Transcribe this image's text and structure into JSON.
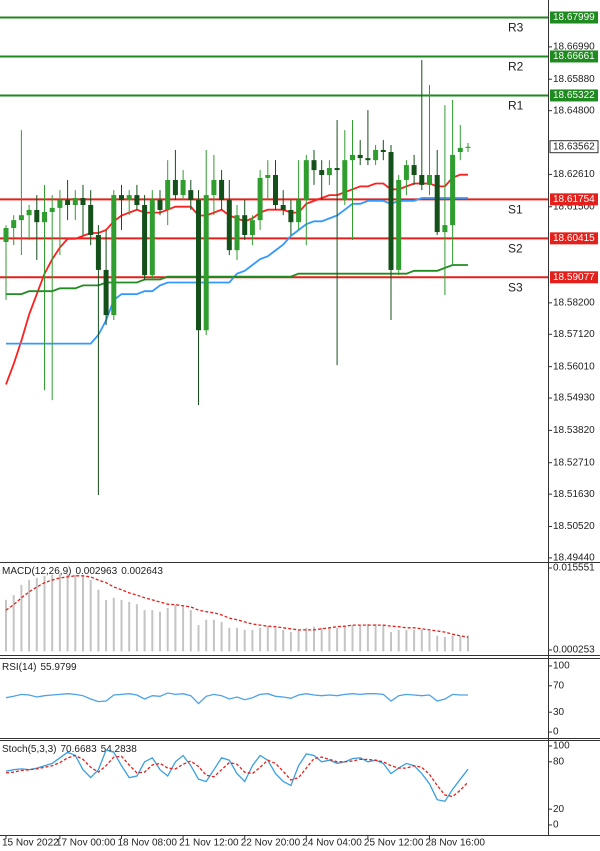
{
  "chart_data": [
    {
      "type": "candlestick",
      "categories": [
        "15 Nov 2022",
        null,
        null,
        null,
        null,
        null,
        null,
        "17 Nov 00:00",
        null,
        null,
        null,
        null,
        null,
        null,
        null,
        "18 Nov 08:00",
        null,
        null,
        null,
        null,
        null,
        null,
        null,
        "21 Nov 12:00",
        null,
        null,
        null,
        null,
        null,
        null,
        null,
        "22 Nov 20:00",
        null,
        null,
        null,
        null,
        null,
        null,
        null,
        "24 Nov 04:00",
        null,
        null,
        null,
        null,
        null,
        null,
        null,
        "25 Nov 12:00",
        null,
        null,
        null,
        null,
        null,
        null,
        null,
        "28 Nov 16:00",
        null,
        null,
        null,
        null,
        null
      ],
      "open": [
        18.6029,
        18.6077,
        18.6104,
        18.6121,
        18.6139,
        18.6097,
        18.6132,
        18.6146,
        18.6173,
        18.6156,
        18.618,
        18.6156,
        18.6053,
        18.5933,
        18.5778,
        18.619,
        18.6173,
        18.619,
        18.6156,
        18.5915,
        18.6173,
        18.6139,
        18.6242,
        18.619,
        18.6207,
        18.6173,
        18.5726,
        18.619,
        18.6242,
        18.6173,
        18.6001,
        18.6121,
        18.6053,
        18.6104,
        18.6249,
        18.6259,
        18.6156,
        18.6139,
        18.6097,
        18.6173,
        18.631,
        18.6276,
        18.6259,
        18.6283,
        18.6173,
        18.631,
        18.6328,
        18.6317,
        18.631,
        18.6345,
        18.6338,
        18.5933,
        18.6242,
        18.6293,
        18.6259,
        18.6225,
        18.6259,
        18.6063,
        18.6087,
        18.6338,
        18.6352
      ],
      "high": [
        18.6087,
        18.6121,
        18.6413,
        18.6156,
        18.619,
        18.6225,
        18.619,
        18.6207,
        18.6242,
        18.6207,
        18.6225,
        18.6207,
        18.6087,
        18.607,
        18.6207,
        18.6225,
        18.6207,
        18.6225,
        18.619,
        18.6207,
        18.6207,
        18.631,
        18.6345,
        18.6276,
        18.6242,
        18.6207,
        18.6345,
        18.6328,
        18.6276,
        18.6242,
        18.6156,
        18.6173,
        18.6121,
        18.6276,
        18.631,
        18.631,
        18.6207,
        18.6173,
        18.631,
        18.6328,
        18.6345,
        18.631,
        18.631,
        18.6448,
        18.6413,
        18.6448,
        18.6379,
        18.6482,
        18.6362,
        18.6379,
        18.6362,
        18.6259,
        18.631,
        18.6328,
        18.6654,
        18.6568,
        18.6345,
        18.6499,
        18.6517,
        18.6431,
        18.6369
      ],
      "low": [
        18.583,
        18.6018,
        18.5984,
        18.6036,
        18.5967,
        18.552,
        18.5486,
        18.5984,
        18.6104,
        18.6104,
        18.6053,
        18.6018,
        18.516,
        18.5744,
        18.5761,
        18.607,
        18.6121,
        18.6139,
        18.5898,
        18.5898,
        18.6121,
        18.6087,
        18.6173,
        18.6173,
        18.6139,
        18.5469,
        18.5709,
        18.6121,
        18.6139,
        18.5984,
        18.5967,
        18.6036,
        18.6018,
        18.607,
        18.6173,
        18.6139,
        18.6121,
        18.6053,
        18.607,
        18.6018,
        18.6225,
        18.6173,
        18.6225,
        18.5606,
        18.6156,
        18.6036,
        18.6293,
        18.6293,
        18.6293,
        18.631,
        18.5761,
        18.5915,
        18.619,
        18.6225,
        18.6207,
        18.619,
        18.6053,
        18.5847,
        18.595,
        18.631,
        18.6338
      ],
      "close": [
        18.6077,
        18.6104,
        18.6121,
        18.6139,
        18.6097,
        18.6132,
        18.6146,
        18.6173,
        18.6156,
        18.618,
        18.6156,
        18.6053,
        18.5933,
        18.5778,
        18.619,
        18.6173,
        18.619,
        18.6156,
        18.5915,
        18.6173,
        18.6139,
        18.6242,
        18.619,
        18.6242,
        18.6173,
        18.5726,
        18.619,
        18.6242,
        18.6173,
        18.6001,
        18.6121,
        18.6053,
        18.6104,
        18.6249,
        18.6259,
        18.6156,
        18.6139,
        18.6097,
        18.6173,
        18.631,
        18.6276,
        18.6259,
        18.6283,
        18.6276,
        18.631,
        18.6328,
        18.6317,
        18.631,
        18.6345,
        18.6338,
        18.5933,
        18.6242,
        18.6293,
        18.6259,
        18.6225,
        18.6259,
        18.6063,
        18.6087,
        18.6328,
        18.6352,
        18.6356
      ],
      "up_color": "#2f9e2f",
      "down_color": "#14501a",
      "series": [
        {
          "color": "#ff1f1f",
          "values": [
            18.554,
            18.561,
            18.569,
            18.578,
            18.585,
            18.592,
            18.597,
            18.601,
            18.604,
            18.604,
            18.605,
            18.606,
            18.606,
            18.607,
            18.61,
            18.612,
            18.613,
            18.614,
            18.613,
            18.613,
            18.613,
            18.614,
            18.615,
            18.615,
            18.615,
            18.612,
            18.612,
            18.613,
            18.614,
            18.612,
            18.611,
            18.61,
            18.611,
            18.613,
            18.614,
            18.614,
            18.614,
            18.613,
            18.613,
            18.616,
            18.617,
            18.618,
            18.619,
            18.619,
            18.62,
            18.621,
            18.622,
            18.622,
            18.623,
            18.623,
            18.621,
            18.621,
            18.622,
            18.623,
            18.623,
            18.623,
            18.622,
            18.622,
            18.625,
            18.626,
            18.626
          ]
        },
        {
          "color": "#3399ff",
          "values": [
            18.568,
            18.568,
            18.568,
            18.568,
            18.568,
            18.568,
            18.568,
            18.568,
            18.568,
            18.568,
            18.568,
            18.568,
            18.571,
            18.576,
            18.583,
            18.585,
            18.585,
            18.585,
            18.586,
            18.586,
            18.588,
            18.589,
            18.589,
            18.589,
            18.589,
            18.589,
            18.589,
            18.589,
            18.589,
            18.589,
            18.592,
            18.593,
            18.595,
            18.597,
            18.598,
            18.6,
            18.602,
            18.605,
            18.607,
            18.609,
            18.61,
            18.61,
            18.611,
            18.612,
            18.614,
            18.616,
            18.616,
            18.617,
            18.617,
            18.617,
            18.616,
            18.617,
            18.617,
            18.617,
            18.618,
            18.618,
            18.618,
            18.618,
            18.618,
            18.618,
            18.618
          ]
        },
        {
          "color": "#228b22",
          "values": [
            18.585,
            18.585,
            18.585,
            18.586,
            18.586,
            18.586,
            18.586,
            18.587,
            18.587,
            18.587,
            18.588,
            18.588,
            18.588,
            18.589,
            18.589,
            18.589,
            18.589,
            18.589,
            18.59,
            18.59,
            18.59,
            18.591,
            18.591,
            18.591,
            18.591,
            18.591,
            18.591,
            18.591,
            18.591,
            18.591,
            18.591,
            18.591,
            18.591,
            18.591,
            18.591,
            18.591,
            18.591,
            18.591,
            18.592,
            18.592,
            18.592,
            18.592,
            18.592,
            18.592,
            18.592,
            18.592,
            18.592,
            18.592,
            18.592,
            18.592,
            18.592,
            18.592,
            18.592,
            18.593,
            18.593,
            18.593,
            18.593,
            18.594,
            18.595,
            18.595,
            18.595
          ]
        }
      ],
      "levels": [
        {
          "name": "R3",
          "value": 18.67999,
          "color": "#1f8a1f"
        },
        {
          "name": "R2",
          "value": 18.66661,
          "color": "#1f8a1f"
        },
        {
          "name": "R1",
          "value": 18.65322,
          "color": "#1f8a1f"
        },
        {
          "name": "S1",
          "value": 18.61754,
          "color": "#e3201b"
        },
        {
          "name": "S2",
          "value": 18.60415,
          "color": "#e3201b"
        },
        {
          "name": "S3",
          "value": 18.59077,
          "color": "#e3201b"
        }
      ],
      "last_price": 18.63562,
      "ylim": [
        18.493,
        18.686
      ],
      "yticks": [
        {
          "value": 18.6699,
          "label": "18.66990"
        },
        {
          "value": 18.6588,
          "label": "18.65880"
        },
        {
          "value": 18.648,
          "label": "18.64800"
        },
        {
          "value": 18.6261,
          "label": "18.62610"
        },
        {
          "value": 18.615,
          "label": "18.61500"
        },
        {
          "value": 18.582,
          "label": "18.58200"
        },
        {
          "value": 18.5712,
          "label": "18.57120"
        },
        {
          "value": 18.5601,
          "label": "18.56010"
        },
        {
          "value": 18.5493,
          "label": "18.54930"
        },
        {
          "value": 18.5382,
          "label": "18.53820"
        },
        {
          "value": 18.5271,
          "label": "18.52710"
        },
        {
          "value": 18.5163,
          "label": "18.51630"
        },
        {
          "value": 18.5052,
          "label": "18.50520"
        },
        {
          "value": 18.4944,
          "label": "18.49440"
        }
      ]
    },
    {
      "type": "macd",
      "title": "MACD(12,26,9)",
      "series": [
        {
          "type": "bar",
          "color": "#c4c4c4",
          "values": [
            0.0096,
            0.0105,
            0.0124,
            0.0133,
            0.0137,
            0.0141,
            0.0143,
            0.0144,
            0.0144,
            0.0143,
            0.0141,
            0.0133,
            0.0115,
            0.0096,
            0.01,
            0.0096,
            0.0092,
            0.0088,
            0.0077,
            0.0077,
            0.0074,
            0.0081,
            0.0087,
            0.0083,
            0.0077,
            0.0049,
            0.0059,
            0.0059,
            0.0055,
            0.0044,
            0.0044,
            0.004,
            0.004,
            0.0044,
            0.0047,
            0.0044,
            0.004,
            0.0036,
            0.004,
            0.0044,
            0.0046,
            0.0044,
            0.0044,
            0.0044,
            0.0046,
            0.0049,
            0.0049,
            0.0051,
            0.0051,
            0.0049,
            0.0036,
            0.004,
            0.004,
            0.004,
            0.004,
            0.0038,
            0.0029,
            0.0027,
            0.0029,
            0.0029,
            0.002963
          ]
        },
        {
          "type": "line",
          "dashed": true,
          "color": "#e3201b",
          "values": [
            0.0077,
            0.0087,
            0.01,
            0.0111,
            0.012,
            0.0128,
            0.0133,
            0.0137,
            0.0139,
            0.0141,
            0.0141,
            0.0139,
            0.0133,
            0.0128,
            0.012,
            0.0115,
            0.0109,
            0.0105,
            0.01,
            0.0096,
            0.0092,
            0.0088,
            0.0087,
            0.0085,
            0.0083,
            0.0077,
            0.0074,
            0.0072,
            0.0068,
            0.0062,
            0.0059,
            0.0055,
            0.0051,
            0.0049,
            0.0047,
            0.0046,
            0.0044,
            0.0042,
            0.004,
            0.004,
            0.004,
            0.0042,
            0.0044,
            0.0046,
            0.0047,
            0.0049,
            0.0049,
            0.0049,
            0.0049,
            0.0049,
            0.0047,
            0.0046,
            0.0044,
            0.0044,
            0.0042,
            0.004,
            0.0038,
            0.0036,
            0.0032,
            0.0029,
            0.002643
          ]
        }
      ],
      "ylim": [
        -0.00068,
        0.016671
      ],
      "yticks": [
        0.015551,
        0.000253
      ]
    },
    {
      "type": "line",
      "title": "RSI(14)",
      "series": [
        {
          "type": "line",
          "color": "#4da3e8",
          "values": [
            52,
            54,
            57,
            56,
            53,
            55,
            56,
            57,
            58,
            57,
            55,
            50,
            46,
            47,
            56,
            57,
            58,
            56,
            50,
            55,
            54,
            59,
            57,
            58,
            55,
            43,
            54,
            57,
            55,
            50,
            53,
            49,
            52,
            57,
            58,
            54,
            53,
            51,
            56,
            58,
            56,
            55,
            56,
            55,
            57,
            58,
            57,
            58,
            58,
            57,
            47,
            55,
            57,
            56,
            55,
            56,
            47,
            50,
            57,
            56,
            55.9799
          ]
        }
      ],
      "ylim": [
        -9,
        112
      ],
      "yticks": [
        100,
        70,
        30,
        0
      ]
    },
    {
      "type": "line",
      "title": "Stoch(5,3,3)",
      "series": [
        {
          "type": "line",
          "color": "#3aa0e0",
          "values": [
            68,
            70,
            71,
            70,
            72,
            75,
            78,
            85,
            92,
            88,
            70,
            60,
            70,
            95,
            92,
            75,
            60,
            62,
            80,
            85,
            70,
            62,
            80,
            88,
            75,
            58,
            55,
            70,
            85,
            82,
            65,
            55,
            75,
            88,
            82,
            65,
            55,
            50,
            75,
            90,
            88,
            80,
            82,
            78,
            80,
            84,
            85,
            80,
            82,
            78,
            65,
            72,
            78,
            75,
            65,
            52,
            32,
            30,
            45,
            58,
            70.6683
          ]
        },
        {
          "type": "line",
          "dashed": true,
          "color": "#e3201b",
          "values": [
            66,
            67,
            69,
            70,
            71,
            73,
            75,
            79,
            85,
            88,
            83,
            73,
            67,
            75,
            86,
            87,
            76,
            66,
            67,
            76,
            78,
            72,
            71,
            77,
            81,
            74,
            63,
            61,
            70,
            79,
            77,
            67,
            65,
            73,
            82,
            78,
            68,
            57,
            60,
            72,
            84,
            86,
            83,
            80,
            80,
            81,
            83,
            83,
            82,
            80,
            75,
            72,
            72,
            75,
            73,
            64,
            50,
            38,
            36,
            44,
            54.2838
          ]
        }
      ],
      "ylim": [
        -12.7,
        107.6
      ],
      "yticks": [
        100,
        80,
        20,
        0
      ]
    }
  ]
}
